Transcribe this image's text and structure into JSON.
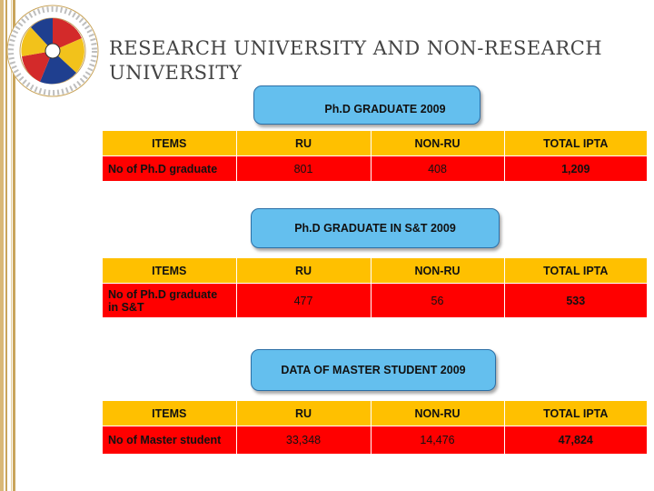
{
  "title": "RESEARCH UNIVERSITY AND NON-RESEARCH UNIVERSITY",
  "colors": {
    "header_row": "#ffc000",
    "data_row": "#ff0000",
    "label_pill": "#64bfee",
    "title_text": "#444444"
  },
  "sections": [
    {
      "label": "Ph.D GRADUATE 2009",
      "columns": [
        "ITEMS",
        "RU",
        "NON-RU",
        "TOTAL IPTA"
      ],
      "row": {
        "item": "No of Ph.D graduate",
        "ru": "801",
        "non_ru": "408",
        "total": "1,209"
      }
    },
    {
      "label": "Ph.D GRADUATE IN S&T 2009",
      "columns": [
        "ITEMS",
        "RU",
        "NON-RU",
        "TOTAL IPTA"
      ],
      "row": {
        "item": "No of Ph.D graduate in S&T",
        "ru": "477",
        "non_ru": "56",
        "total": "533"
      }
    },
    {
      "label": "DATA OF MASTER STUDENT 2009",
      "columns": [
        "ITEMS",
        "RU",
        "NON-RU",
        "TOTAL IPTA"
      ],
      "row": {
        "item": "No of Master student",
        "ru": "33,348",
        "non_ru": "14,476",
        "total": "47,824"
      }
    }
  ]
}
